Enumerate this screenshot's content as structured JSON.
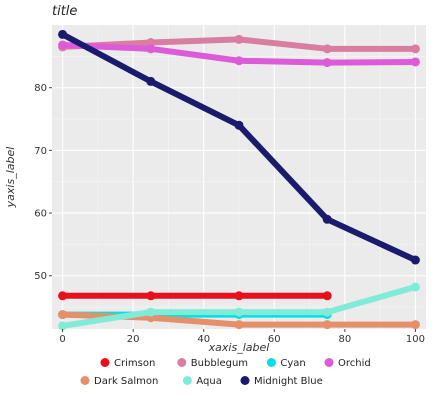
{
  "chart_data": {
    "type": "line",
    "title": "title",
    "xlabel": "xaxis_label",
    "ylabel": "yaxis_label",
    "x": [
      0,
      25,
      50,
      75,
      100
    ],
    "xlim": [
      -3,
      103
    ],
    "ylim": [
      41.5,
      90
    ],
    "xticks": [
      "0",
      "20",
      "40",
      "60",
      "80",
      "100"
    ],
    "yticks": [
      "50",
      "60",
      "70",
      "80"
    ],
    "grid": true,
    "legend_position": "bottom",
    "series": [
      {
        "name": "Crimson",
        "color": "#e8101c",
        "values": [
          46.8,
          46.8,
          46.8,
          46.8,
          null
        ]
      },
      {
        "name": "Bubblegum",
        "color": "#d97ea0",
        "values": [
          86.5,
          87.2,
          87.7,
          86.2,
          86.2
        ]
      },
      {
        "name": "Cyan",
        "color": "#00e0e6",
        "values": [
          43.8,
          43.8,
          43.8,
          43.8,
          null
        ]
      },
      {
        "name": "Orchid",
        "color": "#dd5ad9",
        "values": [
          86.8,
          86.2,
          84.3,
          84.0,
          84.1
        ]
      },
      {
        "name": "Dark Salmon",
        "color": "#e5906a",
        "values": [
          43.8,
          43.3,
          42.2,
          42.2,
          42.2
        ]
      },
      {
        "name": "Aqua",
        "color": "#80ecd8",
        "values": [
          42.0,
          44.2,
          44.2,
          44.2,
          48.2
        ]
      },
      {
        "name": "Midnight Blue",
        "color": "#1b1b6e",
        "values": [
          88.5,
          81.0,
          74.0,
          59.0,
          52.5
        ]
      }
    ]
  }
}
